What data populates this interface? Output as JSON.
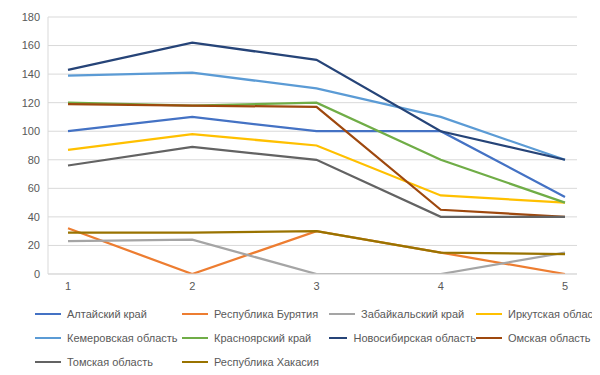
{
  "chart_data": {
    "type": "line",
    "categories": [
      "1",
      "2",
      "3",
      "4",
      "5"
    ],
    "ylim": [
      0,
      180
    ],
    "yticks": [
      0,
      20,
      40,
      60,
      80,
      100,
      120,
      140,
      160,
      180
    ],
    "grid": true,
    "legend": "bottom",
    "series": [
      {
        "name": "Алтайский край",
        "color": "#4472c4",
        "values": [
          100,
          110,
          100,
          100,
          54
        ]
      },
      {
        "name": "Республика Бурятия",
        "color": "#ed7d31",
        "values": [
          32,
          0,
          30,
          15,
          0
        ]
      },
      {
        "name": "Забайкальский край",
        "color": "#a5a5a5",
        "values": [
          23,
          24,
          0,
          0,
          15
        ]
      },
      {
        "name": "Иркутская область",
        "color": "#ffc000",
        "values": [
          87,
          98,
          90,
          55,
          50
        ]
      },
      {
        "name": "Кемеровская область",
        "color": "#5b9bd5",
        "values": [
          139,
          141,
          130,
          110,
          80
        ]
      },
      {
        "name": "Красноярский край",
        "color": "#70ad47",
        "values": [
          120,
          118,
          120,
          80,
          50
        ]
      },
      {
        "name": "Новосибирская область",
        "color": "#264478",
        "values": [
          143,
          162,
          150,
          100,
          80
        ]
      },
      {
        "name": "Омская область",
        "color": "#9e480e",
        "values": [
          119,
          118,
          117,
          45,
          40
        ]
      },
      {
        "name": "Томская область",
        "color": "#636363",
        "values": [
          76,
          89,
          80,
          40,
          40
        ]
      },
      {
        "name": "Республика Хакасия",
        "color": "#997300",
        "values": [
          29,
          29,
          30,
          15,
          14
        ]
      }
    ]
  }
}
